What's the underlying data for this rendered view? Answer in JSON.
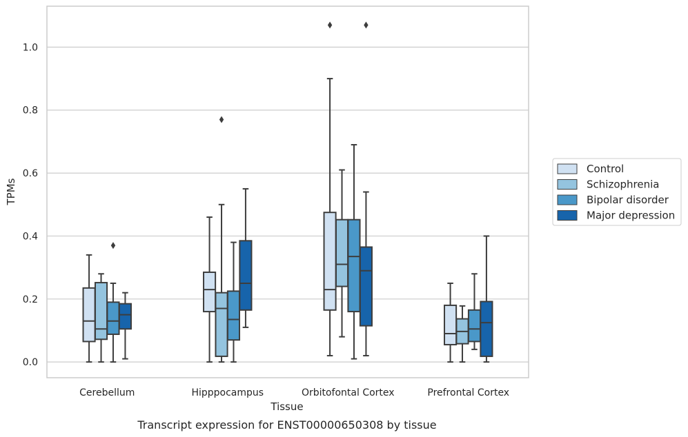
{
  "chart_data": {
    "type": "box",
    "title": "Transcript expression for ENST00000650308 by tissue",
    "xlabel": "Tissue",
    "ylabel": "TPMs",
    "ylim": [
      -0.05,
      1.13
    ],
    "yticks": [
      "0.0",
      "0.2",
      "0.4",
      "0.6",
      "0.8",
      "1.0"
    ],
    "grid": "horizontal",
    "legend_position": "right",
    "categories": [
      "Cerebellum",
      "Hipppocampus",
      "Orbitofontal Cortex",
      "Prefrontal Cortex"
    ],
    "series": [
      {
        "name": "Control",
        "color": "#d0e1f2",
        "boxes": [
          {
            "whisker_low": 0.0,
            "q1": 0.065,
            "median": 0.13,
            "q3": 0.235,
            "whisker_high": 0.34,
            "outliers": []
          },
          {
            "whisker_low": 0.0,
            "q1": 0.16,
            "median": 0.23,
            "q3": 0.285,
            "whisker_high": 0.46,
            "outliers": []
          },
          {
            "whisker_low": 0.02,
            "q1": 0.165,
            "median": 0.23,
            "q3": 0.475,
            "whisker_high": 0.9,
            "outliers": [
              1.07
            ]
          },
          {
            "whisker_low": 0.0,
            "q1": 0.055,
            "median": 0.09,
            "q3": 0.18,
            "whisker_high": 0.25,
            "outliers": []
          }
        ]
      },
      {
        "name": "Schizophrenia",
        "color": "#94c4df",
        "boxes": [
          {
            "whisker_low": 0.0,
            "q1": 0.072,
            "median": 0.105,
            "q3": 0.252,
            "whisker_high": 0.28,
            "outliers": []
          },
          {
            "whisker_low": 0.0,
            "q1": 0.018,
            "median": 0.17,
            "q3": 0.22,
            "whisker_high": 0.5,
            "outliers": [
              0.77
            ]
          },
          {
            "whisker_low": 0.08,
            "q1": 0.24,
            "median": 0.31,
            "q3": 0.452,
            "whisker_high": 0.61,
            "outliers": []
          },
          {
            "whisker_low": 0.0,
            "q1": 0.058,
            "median": 0.097,
            "q3": 0.137,
            "whisker_high": 0.178,
            "outliers": []
          }
        ]
      },
      {
        "name": "Bipolar disorder",
        "color": "#4a98c9",
        "boxes": [
          {
            "whisker_low": 0.0,
            "q1": 0.088,
            "median": 0.13,
            "q3": 0.19,
            "whisker_high": 0.25,
            "outliers": [
              0.37
            ]
          },
          {
            "whisker_low": 0.0,
            "q1": 0.07,
            "median": 0.135,
            "q3": 0.225,
            "whisker_high": 0.38,
            "outliers": []
          },
          {
            "whisker_low": 0.01,
            "q1": 0.16,
            "median": 0.335,
            "q3": 0.452,
            "whisker_high": 0.69,
            "outliers": []
          },
          {
            "whisker_low": 0.04,
            "q1": 0.065,
            "median": 0.105,
            "q3": 0.165,
            "whisker_high": 0.28,
            "outliers": []
          }
        ]
      },
      {
        "name": "Major depression",
        "color": "#1764ab",
        "boxes": [
          {
            "whisker_low": 0.01,
            "q1": 0.105,
            "median": 0.15,
            "q3": 0.185,
            "whisker_high": 0.22,
            "outliers": []
          },
          {
            "whisker_low": 0.11,
            "q1": 0.165,
            "median": 0.25,
            "q3": 0.385,
            "whisker_high": 0.55,
            "outliers": []
          },
          {
            "whisker_low": 0.02,
            "q1": 0.115,
            "median": 0.29,
            "q3": 0.365,
            "whisker_high": 0.54,
            "outliers": [
              1.07
            ]
          },
          {
            "whisker_low": 0.0,
            "q1": 0.018,
            "median": 0.125,
            "q3": 0.192,
            "whisker_high": 0.4,
            "outliers": []
          }
        ]
      }
    ]
  }
}
